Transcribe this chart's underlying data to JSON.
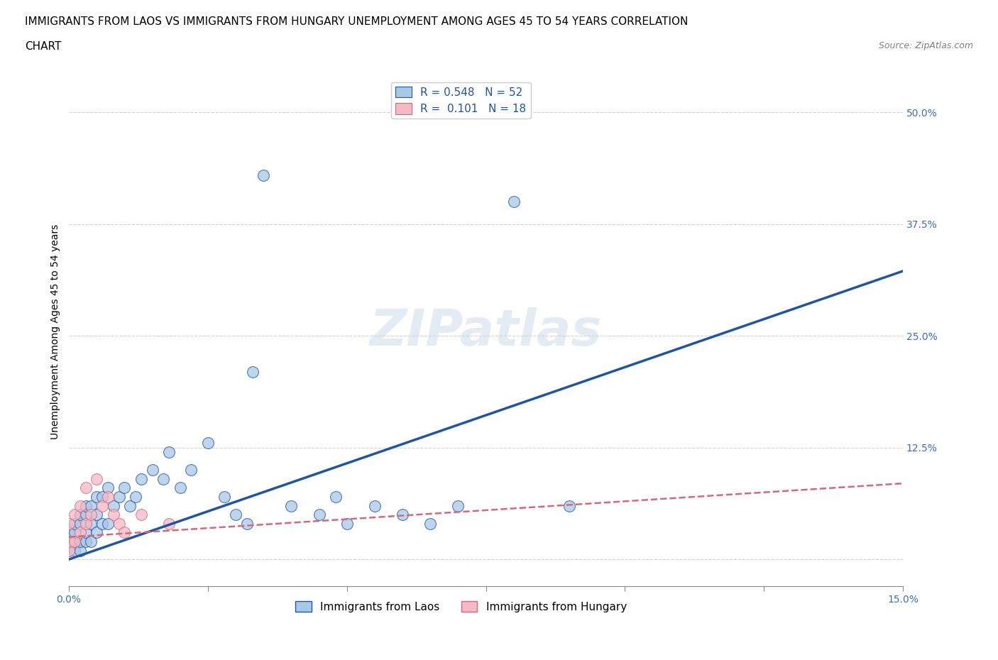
{
  "title_line1": "IMMIGRANTS FROM LAOS VS IMMIGRANTS FROM HUNGARY UNEMPLOYMENT AMONG AGES 45 TO 54 YEARS CORRELATION",
  "title_line2": "CHART",
  "source_text": "Source: ZipAtlas.com",
  "ylabel": "Unemployment Among Ages 45 to 54 years",
  "xlim": [
    0.0,
    0.15
  ],
  "ylim": [
    -0.03,
    0.54
  ],
  "ytick_positions": [
    0.0,
    0.125,
    0.25,
    0.375,
    0.5
  ],
  "ytick_labels": [
    "",
    "12.5%",
    "25.0%",
    "37.5%",
    "50.0%"
  ],
  "xtick_positions": [
    0.0,
    0.025,
    0.05,
    0.075,
    0.1,
    0.125,
    0.15
  ],
  "laos_R": 0.548,
  "laos_N": 52,
  "hungary_R": 0.101,
  "hungary_N": 18,
  "laos_color": "#a8c8e8",
  "laos_line_color": "#2255a0",
  "hungary_color": "#f5b8c4",
  "hungary_line_color": "#d4697a",
  "laos_x": [
    0.0,
    0.0,
    0.0,
    0.001,
    0.001,
    0.001,
    0.001,
    0.002,
    0.002,
    0.002,
    0.002,
    0.003,
    0.003,
    0.003,
    0.003,
    0.004,
    0.004,
    0.004,
    0.005,
    0.005,
    0.005,
    0.006,
    0.006,
    0.007,
    0.007,
    0.008,
    0.009,
    0.01,
    0.011,
    0.012,
    0.013,
    0.015,
    0.017,
    0.018,
    0.02,
    0.022,
    0.025,
    0.028,
    0.03,
    0.032,
    0.033,
    0.035,
    0.04,
    0.045,
    0.048,
    0.05,
    0.055,
    0.06,
    0.065,
    0.07,
    0.08,
    0.09
  ],
  "laos_y": [
    0.01,
    0.02,
    0.03,
    0.01,
    0.02,
    0.03,
    0.04,
    0.01,
    0.02,
    0.04,
    0.05,
    0.02,
    0.03,
    0.05,
    0.06,
    0.02,
    0.04,
    0.06,
    0.03,
    0.05,
    0.07,
    0.04,
    0.07,
    0.04,
    0.08,
    0.06,
    0.07,
    0.08,
    0.06,
    0.07,
    0.09,
    0.1,
    0.09,
    0.12,
    0.08,
    0.1,
    0.13,
    0.07,
    0.05,
    0.04,
    0.21,
    0.43,
    0.06,
    0.05,
    0.07,
    0.04,
    0.06,
    0.05,
    0.04,
    0.06,
    0.4,
    0.06
  ],
  "hungary_x": [
    0.0,
    0.0,
    0.0,
    0.001,
    0.001,
    0.002,
    0.002,
    0.003,
    0.003,
    0.004,
    0.005,
    0.006,
    0.007,
    0.008,
    0.009,
    0.01,
    0.013,
    0.018
  ],
  "hungary_y": [
    0.01,
    0.02,
    0.04,
    0.02,
    0.05,
    0.03,
    0.06,
    0.04,
    0.08,
    0.05,
    0.09,
    0.06,
    0.07,
    0.05,
    0.04,
    0.03,
    0.05,
    0.04
  ],
  "grid_color": "#cccccc",
  "background_color": "#ffffff",
  "title_fontsize": 11,
  "axis_label_fontsize": 10,
  "tick_fontsize": 10,
  "legend_fontsize": 11,
  "watermark_text": "ZIPatlas"
}
